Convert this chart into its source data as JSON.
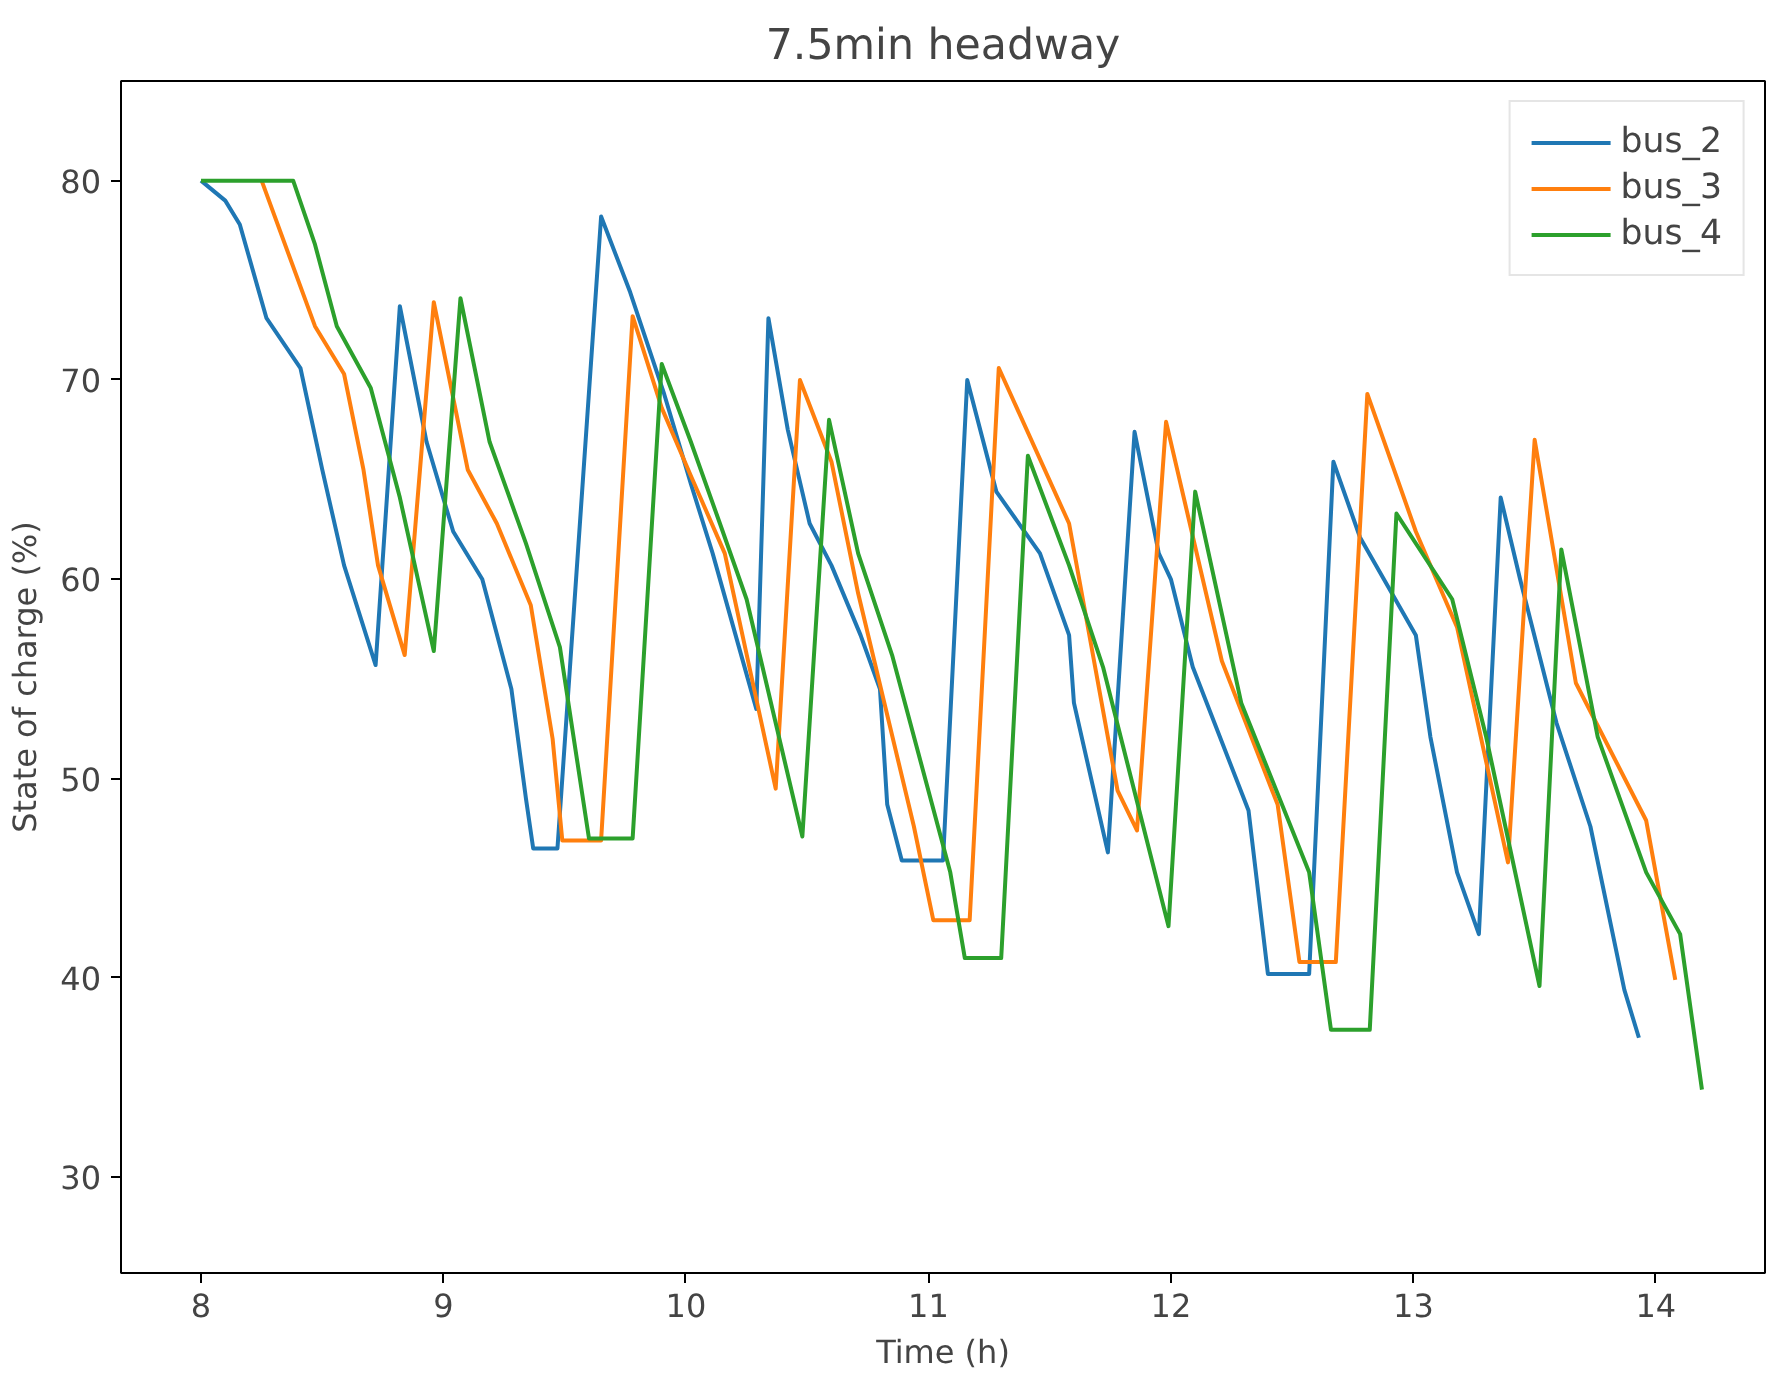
{
  "chart_data": {
    "type": "line",
    "title": "7.5min headway",
    "xlabel": "Time (h)",
    "ylabel": "State of charge (%)",
    "xlim": [
      7.67,
      14.45
    ],
    "ylim": [
      25.2,
      85.0
    ],
    "xticks": [
      8,
      9,
      10,
      11,
      12,
      13,
      14
    ],
    "yticks": [
      30,
      40,
      50,
      60,
      70,
      80
    ],
    "grid": false,
    "legend": "top right",
    "marker": "none",
    "line_style": "solid",
    "series": [
      {
        "name": "bus_2",
        "color": "#1f77b4",
        "x": [
          8.0,
          8.1,
          8.16,
          8.27,
          8.41,
          8.5,
          8.59,
          8.72,
          8.82,
          8.93,
          9.04,
          9.16,
          9.28,
          9.34,
          9.37,
          9.47,
          9.65,
          9.77,
          9.91,
          10.02,
          10.11,
          10.29,
          10.34,
          10.42,
          10.51,
          10.6,
          10.72,
          10.8,
          10.83,
          10.89,
          11.06,
          11.16,
          11.28,
          11.46,
          11.58,
          11.6,
          11.74,
          11.85,
          11.95,
          12.0,
          12.09,
          12.32,
          12.4,
          12.57,
          12.67,
          12.78,
          13.01,
          13.07,
          13.18,
          13.27,
          13.36,
          13.44,
          13.59,
          13.73,
          13.87,
          13.93
        ],
        "values": [
          80,
          79,
          77.8,
          73.1,
          70.6,
          65.5,
          60.7,
          55.7,
          73.7,
          66.9,
          62.4,
          60,
          54.5,
          49,
          46.5,
          46.5,
          78.2,
          74.4,
          69.3,
          64.8,
          61.3,
          53.5,
          73.1,
          67.5,
          62.8,
          60.7,
          57.2,
          54.5,
          48.7,
          45.9,
          45.9,
          70.0,
          64.4,
          61.3,
          57.2,
          53.8,
          46.3,
          67.4,
          61.3,
          60,
          55.6,
          48.4,
          40.2,
          40.2,
          65.9,
          62.1,
          57.2,
          52.1,
          45.3,
          42.2,
          64.1,
          60,
          52.8,
          47.6,
          39.4,
          37.0
        ]
      },
      {
        "name": "bus_3",
        "color": "#ff7f0e",
        "x": [
          8.25,
          8.47,
          8.59,
          8.67,
          8.73,
          8.84,
          8.96,
          9.1,
          9.22,
          9.36,
          9.45,
          9.49,
          9.65,
          9.78,
          9.9,
          10.02,
          10.16,
          10.37,
          10.47,
          10.6,
          10.71,
          10.94,
          11.02,
          11.17,
          11.29,
          11.58,
          11.78,
          11.86,
          11.98,
          12.21,
          12.44,
          12.53,
          12.68,
          12.81,
          13.01,
          13.18,
          13.39,
          13.5,
          13.67,
          13.96,
          14.08
        ],
        "values": [
          80,
          72.7,
          70.3,
          65.5,
          60.7,
          56.2,
          73.9,
          65.5,
          62.8,
          58.7,
          52,
          46.9,
          46.9,
          73.2,
          68.6,
          65.2,
          61.3,
          49.5,
          70,
          65.9,
          59.3,
          47.6,
          42.9,
          42.9,
          70.6,
          62.8,
          49.4,
          47.4,
          67.9,
          55.9,
          48.7,
          40.8,
          40.8,
          69.3,
          62.4,
          57.6,
          45.8,
          67.0,
          54.8,
          47.9,
          39.9
        ]
      },
      {
        "name": "bus_4",
        "color": "#2ca02c",
        "x": [
          8.0,
          8.38,
          8.47,
          8.56,
          8.7,
          8.82,
          8.96,
          9.07,
          9.19,
          9.34,
          9.48,
          9.6,
          9.78,
          9.9,
          10.02,
          10.14,
          10.25,
          10.48,
          10.59,
          10.71,
          10.85,
          11.09,
          11.15,
          11.3,
          11.41,
          11.58,
          11.72,
          11.99,
          12.1,
          12.29,
          12.57,
          12.66,
          12.82,
          12.93,
          13.16,
          13.3,
          13.52,
          13.61,
          13.76,
          13.96,
          14.1,
          14.19
        ],
        "values": [
          80,
          80,
          76.8,
          72.7,
          69.6,
          64.1,
          56.4,
          74.1,
          66.9,
          61.8,
          56.6,
          47.0,
          47.0,
          70.8,
          66.9,
          62.8,
          59,
          47.1,
          68.0,
          61.3,
          56.2,
          45.3,
          41.0,
          41.0,
          66.2,
          60.7,
          55.6,
          42.6,
          64.4,
          53.8,
          45.3,
          37.4,
          37.4,
          63.3,
          59,
          52.1,
          39.6,
          61.5,
          52.1,
          45.3,
          42.2,
          34.4
        ]
      }
    ]
  }
}
